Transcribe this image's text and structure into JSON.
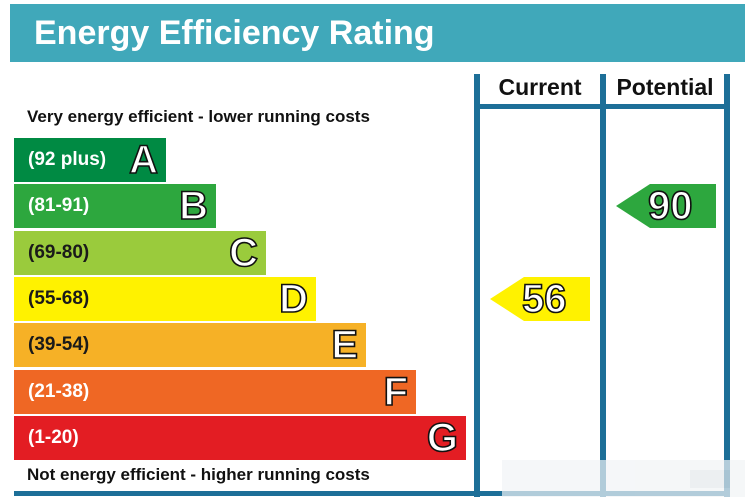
{
  "title": "Energy Efficiency Rating",
  "top_note": "Very energy efficient - lower running costs",
  "bottom_note": "Not energy efficient - higher running costs",
  "columns": {
    "current": "Current",
    "potential": "Potential"
  },
  "chart_data": {
    "type": "bar",
    "title": "Energy Efficiency Rating",
    "categories": [
      "A",
      "B",
      "C",
      "D",
      "E",
      "F",
      "G"
    ],
    "ranges": [
      "(92 plus)",
      "(81-91)",
      "(69-80)",
      "(55-68)",
      "(39-54)",
      "(21-38)",
      "(1-20)"
    ],
    "colors": [
      "#008a43",
      "#2da73e",
      "#9acb3c",
      "#fff200",
      "#f6b126",
      "#ef6724",
      "#e31d23"
    ],
    "current": {
      "value": 56,
      "band": "D",
      "color": "#fff200"
    },
    "potential": {
      "value": 90,
      "band": "B",
      "color": "#2da73e"
    }
  }
}
